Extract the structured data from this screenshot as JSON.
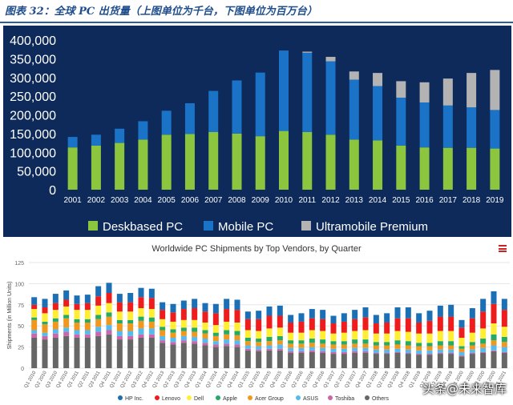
{
  "caption": "图表 32：全球 PC 出货量（上图单位为千台，下图单位为百万台）",
  "watermark": "头条@未来智库",
  "chart_data": [
    {
      "type": "bar",
      "stacked": true,
      "title": "",
      "categories": [
        "2001",
        "2002",
        "2003",
        "2004",
        "2005",
        "2006",
        "2007",
        "2008",
        "2009",
        "2010",
        "2011",
        "2012",
        "2013",
        "2014",
        "2015",
        "2016",
        "2017",
        "2018",
        "2019"
      ],
      "ylim": [
        0,
        400000
      ],
      "yticks": [
        "0",
        "50,000",
        "100,000",
        "150,000",
        "200,000",
        "250,000",
        "300,000",
        "350,000",
        "400,000"
      ],
      "legend_position": "bottom",
      "series": [
        {
          "name": "Deskbased PC",
          "color": "#8cc63f",
          "values": [
            113000,
            118000,
            125000,
            134000,
            147000,
            149000,
            154000,
            150000,
            143000,
            157000,
            154000,
            147000,
            134000,
            132000,
            118000,
            113000,
            112000,
            112000,
            110000
          ]
        },
        {
          "name": "Mobile PC",
          "color": "#1a73c7",
          "values": [
            28000,
            29000,
            38000,
            49000,
            64000,
            82000,
            110000,
            142000,
            170000,
            215000,
            212000,
            196000,
            160000,
            145000,
            128000,
            120000,
            113000,
            108000,
            103000
          ]
        },
        {
          "name": "Ultramobile Premium",
          "color": "#b3b3b3",
          "values": [
            0,
            0,
            0,
            0,
            0,
            0,
            0,
            0,
            0,
            0,
            3000,
            12000,
            22000,
            35000,
            44000,
            54000,
            72000,
            92000,
            107000
          ]
        }
      ]
    },
    {
      "type": "bar",
      "stacked": true,
      "title": "Worldwide PC Shipments by Top Vendors, by Quarter",
      "ylabel": "Shipments (in Million Units)",
      "ylim": [
        0,
        125
      ],
      "yticks": [
        "0",
        "25",
        "50",
        "75",
        "100",
        "125"
      ],
      "legend_position": "bottom",
      "categories": [
        "Q1 2010",
        "Q2 2010",
        "Q3 2010",
        "Q4 2010",
        "Q1 2011",
        "Q2 2011",
        "Q3 2011",
        "Q4 2011",
        "Q1 2012",
        "Q2 2012",
        "Q3 2012",
        "Q4 2012",
        "Q1 2013",
        "Q2 2013",
        "Q3 2013",
        "Q4 2013",
        "Q1 2014",
        "Q2 2014",
        "Q3 2014",
        "Q4 2014",
        "Q1 2015",
        "Q2 2015",
        "Q3 2015",
        "Q4 2015",
        "Q1 2016",
        "Q2 2016",
        "Q3 2016",
        "Q4 2016",
        "Q1 2017",
        "Q2 2017",
        "Q3 2017",
        "Q4 2017",
        "Q1 2018",
        "Q2 2018",
        "Q3 2018",
        "Q4 2018",
        "Q1 2019",
        "Q2 2019",
        "Q3 2019",
        "Q4 2019",
        "Q1 2020",
        "Q2 2020",
        "Q3 2020",
        "Q4 2020",
        "Q1 2021"
      ],
      "series": [
        {
          "name": "Others",
          "color": "#666666",
          "values": [
            36,
            34,
            36,
            38,
            36,
            36,
            38,
            40,
            34,
            34,
            36,
            36,
            30,
            28,
            30,
            29,
            27,
            25,
            26,
            25,
            21,
            20,
            21,
            21,
            18,
            18,
            19,
            18,
            17,
            17,
            18,
            18,
            17,
            17,
            18,
            17,
            16,
            16,
            17,
            17,
            14,
            17,
            18,
            20,
            18
          ]
        },
        {
          "name": "Toshiba",
          "color": "#cc66aa",
          "values": [
            5,
            4,
            5,
            5,
            4,
            4,
            5,
            5,
            4,
            4,
            4,
            4,
            3,
            3,
            3,
            3,
            3,
            3,
            3,
            3,
            2,
            2,
            2,
            2,
            2,
            2,
            2,
            2,
            2,
            2,
            2,
            2,
            1,
            1,
            1,
            1,
            1,
            1,
            1,
            1,
            1,
            1,
            1,
            1,
            1
          ]
        },
        {
          "name": "ASUS",
          "color": "#55bbee",
          "values": [
            4,
            4,
            5,
            5,
            5,
            5,
            6,
            6,
            6,
            6,
            7,
            7,
            5,
            5,
            5,
            5,
            5,
            4,
            5,
            5,
            4,
            4,
            4,
            5,
            4,
            4,
            4,
            4,
            4,
            4,
            4,
            4,
            4,
            4,
            4,
            4,
            4,
            4,
            4,
            4,
            4,
            4,
            5,
            6,
            6
          ]
        },
        {
          "name": "Acer Group",
          "color": "#f0981e",
          "values": [
            12,
            10,
            9,
            11,
            9,
            9,
            9,
            10,
            9,
            9,
            9,
            8,
            7,
            6,
            6,
            6,
            6,
            6,
            6,
            6,
            5,
            5,
            5,
            5,
            5,
            5,
            5,
            5,
            5,
            5,
            5,
            5,
            5,
            5,
            5,
            5,
            5,
            5,
            5,
            5,
            4,
            5,
            5,
            6,
            6
          ]
        },
        {
          "name": "Apple",
          "color": "#22aa66",
          "values": [
            3,
            3,
            4,
            4,
            4,
            4,
            5,
            5,
            4,
            4,
            5,
            5,
            4,
            4,
            4,
            5,
            4,
            4,
            5,
            5,
            4,
            4,
            5,
            5,
            4,
            4,
            5,
            5,
            4,
            4,
            5,
            5,
            4,
            4,
            5,
            5,
            4,
            4,
            5,
            5,
            3,
            4,
            6,
            7,
            6
          ]
        },
        {
          "name": "Dell",
          "color": "#ffee33",
          "values": [
            10,
            10,
            10,
            10,
            11,
            11,
            11,
            11,
            10,
            10,
            10,
            10,
            9,
            9,
            9,
            9,
            9,
            9,
            10,
            10,
            9,
            9,
            10,
            10,
            9,
            9,
            10,
            10,
            9,
            10,
            10,
            11,
            10,
            10,
            11,
            11,
            11,
            11,
            12,
            12,
            10,
            11,
            12,
            13,
            12
          ]
        },
        {
          "name": "Lenovo",
          "color": "#ee1c1c",
          "values": [
            5,
            7,
            8,
            8,
            7,
            8,
            11,
            12,
            11,
            11,
            13,
            13,
            11,
            11,
            13,
            14,
            13,
            14,
            15,
            15,
            13,
            14,
            15,
            14,
            12,
            13,
            14,
            14,
            12,
            13,
            14,
            15,
            12,
            13,
            15,
            16,
            13,
            15,
            17,
            17,
            12,
            17,
            20,
            23,
            20
          ]
        },
        {
          "name": "HP Inc.",
          "color": "#1a6fb5",
          "values": [
            9,
            10,
            11,
            11,
            10,
            10,
            12,
            12,
            10,
            11,
            11,
            11,
            9,
            10,
            10,
            11,
            10,
            11,
            12,
            12,
            9,
            10,
            11,
            12,
            9,
            10,
            11,
            11,
            9,
            10,
            11,
            12,
            10,
            11,
            13,
            13,
            11,
            12,
            13,
            14,
            9,
            12,
            15,
            15,
            13
          ]
        }
      ]
    }
  ]
}
